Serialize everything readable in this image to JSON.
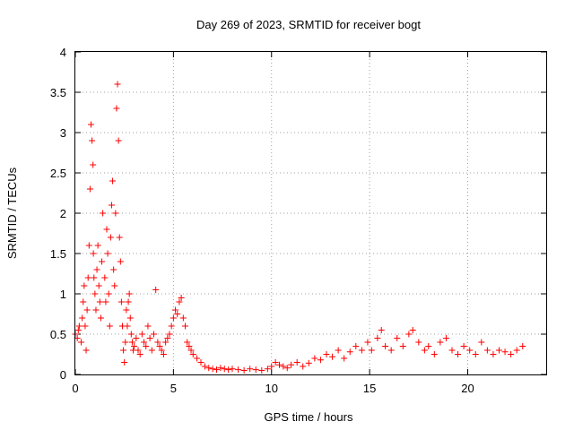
{
  "chart_data": {
    "type": "scatter",
    "title": "Day 269 of 2023, SRMTID for receiver bogt",
    "xlabel": "GPS time / hours",
    "ylabel": "SRMTID / TECUs",
    "xlim": [
      0,
      24
    ],
    "ylim": [
      0,
      4
    ],
    "xticks": [
      0,
      5,
      10,
      15,
      20
    ],
    "xtick_labels": [
      "0",
      "5",
      "10",
      "15",
      "20"
    ],
    "yticks": [
      0,
      0.5,
      1,
      1.5,
      2,
      2.5,
      3,
      3.5,
      4
    ],
    "ytick_labels": [
      "0",
      "0.5",
      "1",
      "1.5",
      "2",
      "2.5",
      "3",
      "3.5",
      "4"
    ],
    "grid": true,
    "marker": "plus",
    "color": "#ff0000",
    "series": [
      {
        "name": "SRMTID",
        "x": [
          0.0,
          0.1,
          0.15,
          0.2,
          0.3,
          0.35,
          0.4,
          0.45,
          0.5,
          0.55,
          0.6,
          0.65,
          0.7,
          0.75,
          0.8,
          0.85,
          0.9,
          0.92,
          0.95,
          1.0,
          1.05,
          1.1,
          1.15,
          1.2,
          1.25,
          1.3,
          1.35,
          1.4,
          1.5,
          1.55,
          1.6,
          1.65,
          1.7,
          1.75,
          1.8,
          1.85,
          1.9,
          1.95,
          2.0,
          2.05,
          2.1,
          2.15,
          2.2,
          2.25,
          2.3,
          2.35,
          2.4,
          2.45,
          2.5,
          2.55,
          2.6,
          2.65,
          2.7,
          2.75,
          2.8,
          2.85,
          2.9,
          2.95,
          3.0,
          3.1,
          3.2,
          3.3,
          3.4,
          3.5,
          3.6,
          3.7,
          3.8,
          3.9,
          4.0,
          4.1,
          4.2,
          4.3,
          4.4,
          4.5,
          4.6,
          4.7,
          4.8,
          4.9,
          5.0,
          5.1,
          5.2,
          5.3,
          5.4,
          5.5,
          5.6,
          5.7,
          5.8,
          5.9,
          6.0,
          6.2,
          6.4,
          6.6,
          6.8,
          7.0,
          7.2,
          7.4,
          7.6,
          7.8,
          8.0,
          8.3,
          8.6,
          8.9,
          9.2,
          9.5,
          9.8,
          10.0,
          10.2,
          10.4,
          10.6,
          10.8,
          11.0,
          11.3,
          11.6,
          11.9,
          12.2,
          12.5,
          12.8,
          13.1,
          13.4,
          13.7,
          14.0,
          14.3,
          14.6,
          14.9,
          15.1,
          15.4,
          15.6,
          15.8,
          16.1,
          16.4,
          16.7,
          17.0,
          17.2,
          17.5,
          17.8,
          18.0,
          18.3,
          18.6,
          18.9,
          19.2,
          19.5,
          19.8,
          20.1,
          20.4,
          20.7,
          21.0,
          21.3,
          21.6,
          21.9,
          22.2,
          22.5,
          22.8
        ],
        "y": [
          0.5,
          0.45,
          0.55,
          0.6,
          0.4,
          0.7,
          0.9,
          1.1,
          0.6,
          0.3,
          0.8,
          1.2,
          1.6,
          2.3,
          3.1,
          2.9,
          2.6,
          1.5,
          1.2,
          1.0,
          0.8,
          1.3,
          1.6,
          1.1,
          0.9,
          0.7,
          1.4,
          2.0,
          1.2,
          0.9,
          1.8,
          1.5,
          1.0,
          0.6,
          1.7,
          2.1,
          2.4,
          1.3,
          1.1,
          2.0,
          3.3,
          3.6,
          2.9,
          1.7,
          1.4,
          0.9,
          0.6,
          0.3,
          0.15,
          0.4,
          0.8,
          0.6,
          0.9,
          1.0,
          0.7,
          0.5,
          0.4,
          0.3,
          0.35,
          0.45,
          0.3,
          0.25,
          0.5,
          0.4,
          0.35,
          0.6,
          0.45,
          0.3,
          0.5,
          1.05,
          0.4,
          0.35,
          0.3,
          0.25,
          0.4,
          0.45,
          0.5,
          0.6,
          0.7,
          0.8,
          0.75,
          0.9,
          0.95,
          0.7,
          0.6,
          0.4,
          0.35,
          0.3,
          0.25,
          0.2,
          0.15,
          0.1,
          0.08,
          0.07,
          0.06,
          0.08,
          0.07,
          0.06,
          0.07,
          0.06,
          0.05,
          0.07,
          0.06,
          0.05,
          0.07,
          0.1,
          0.15,
          0.12,
          0.1,
          0.08,
          0.12,
          0.15,
          0.1,
          0.14,
          0.2,
          0.18,
          0.25,
          0.22,
          0.3,
          0.2,
          0.28,
          0.35,
          0.3,
          0.4,
          0.3,
          0.45,
          0.55,
          0.35,
          0.3,
          0.45,
          0.35,
          0.5,
          0.55,
          0.4,
          0.3,
          0.35,
          0.25,
          0.4,
          0.45,
          0.3,
          0.25,
          0.35,
          0.3,
          0.25,
          0.4,
          0.3,
          0.25,
          0.3,
          0.28,
          0.25,
          0.3,
          0.35
        ]
      }
    ]
  }
}
